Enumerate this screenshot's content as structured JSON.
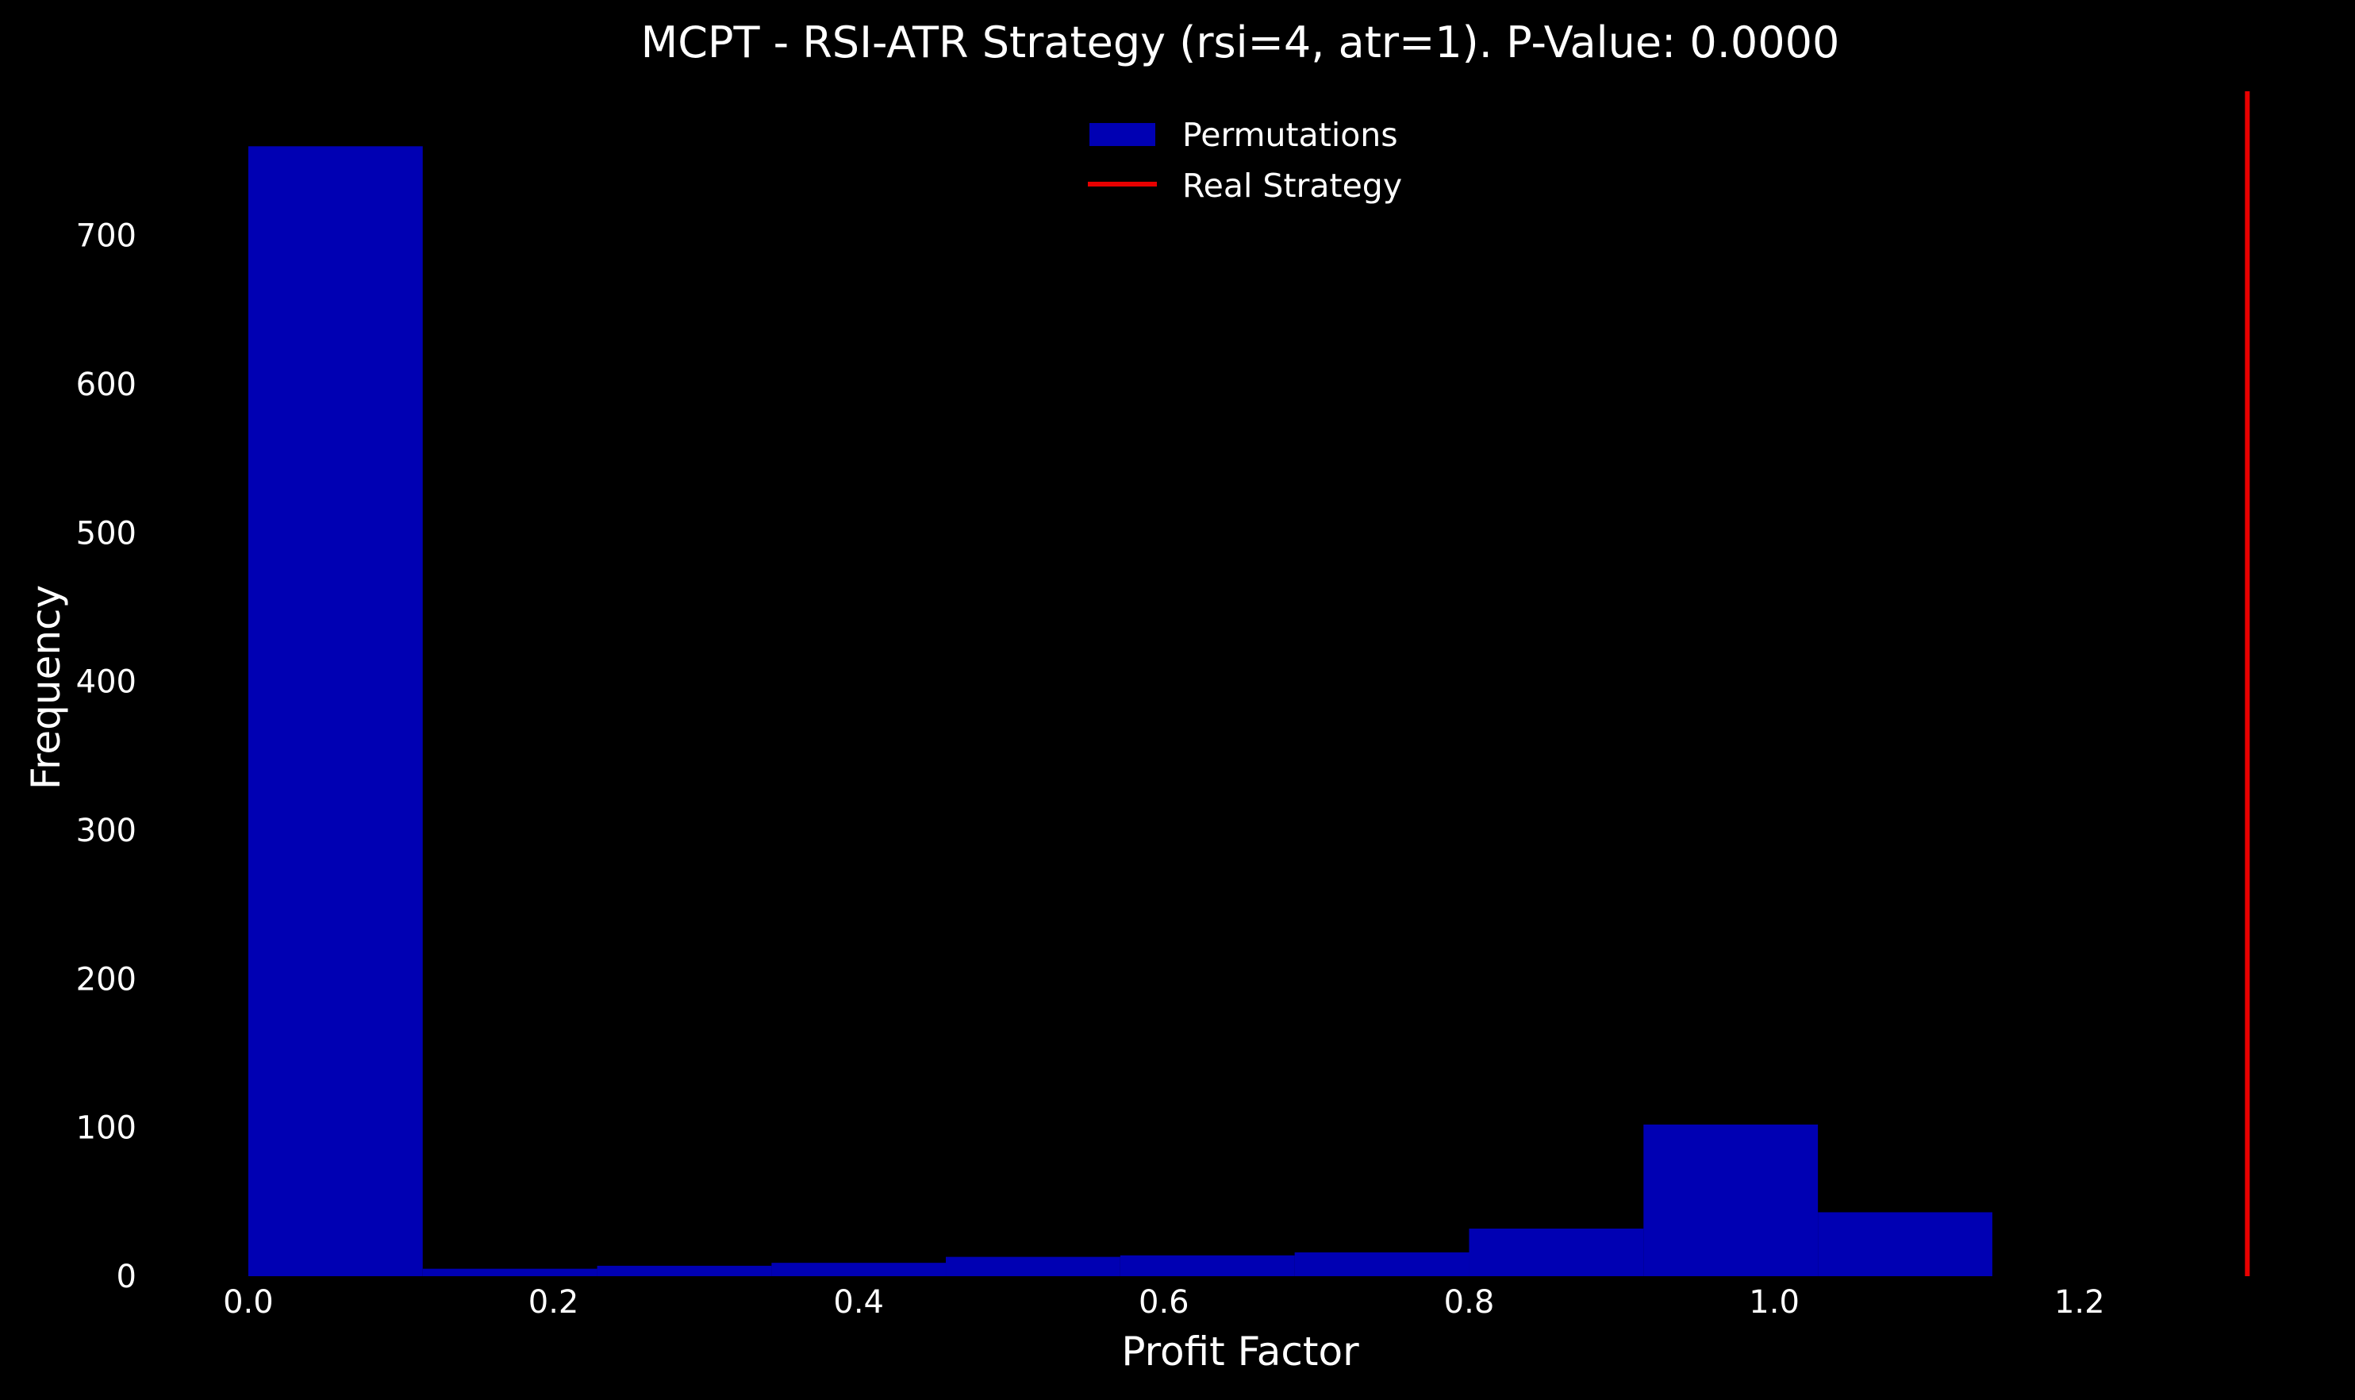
{
  "chart_data": {
    "type": "bar",
    "chart_subtype": "histogram",
    "title": "MCPT - RSI-ATR Strategy (rsi=4, atr=1). P-Value: 0.0000",
    "xlabel": "Profit Factor",
    "ylabel": "Frequency",
    "xlim": [
      -0.014,
      1.314
    ],
    "ylim": [
      0,
      797
    ],
    "xticks": [
      "0.0",
      "0.2",
      "0.4",
      "0.6",
      "0.8",
      "1.0",
      "1.2"
    ],
    "xtick_values": [
      0.0,
      0.2,
      0.4,
      0.6,
      0.8,
      1.0,
      1.2
    ],
    "yticks": [
      "0",
      "100",
      "200",
      "300",
      "400",
      "500",
      "600",
      "700"
    ],
    "ytick_values": [
      0,
      100,
      200,
      300,
      400,
      500,
      600,
      700
    ],
    "grid": false,
    "legend_position": "top-center",
    "bins": [
      {
        "x0": 0.0,
        "x1": 0.1143,
        "count": 760
      },
      {
        "x0": 0.1143,
        "x1": 0.2286,
        "count": 5
      },
      {
        "x0": 0.2286,
        "x1": 0.3429,
        "count": 7
      },
      {
        "x0": 0.3429,
        "x1": 0.4571,
        "count": 9
      },
      {
        "x0": 0.4571,
        "x1": 0.5714,
        "count": 13
      },
      {
        "x0": 0.5714,
        "x1": 0.6857,
        "count": 14
      },
      {
        "x0": 0.6857,
        "x1": 0.8,
        "count": 16
      },
      {
        "x0": 0.8,
        "x1": 0.9143,
        "count": 32
      },
      {
        "x0": 0.9143,
        "x1": 1.0286,
        "count": 102
      },
      {
        "x0": 1.0286,
        "x1": 1.1429,
        "count": 43
      }
    ],
    "real_strategy_value": 1.31,
    "series": [
      {
        "name": "Permutations",
        "kind": "histogram",
        "color": "#0000b3"
      },
      {
        "name": "Real Strategy",
        "kind": "vline",
        "color": "#e80000"
      }
    ]
  }
}
